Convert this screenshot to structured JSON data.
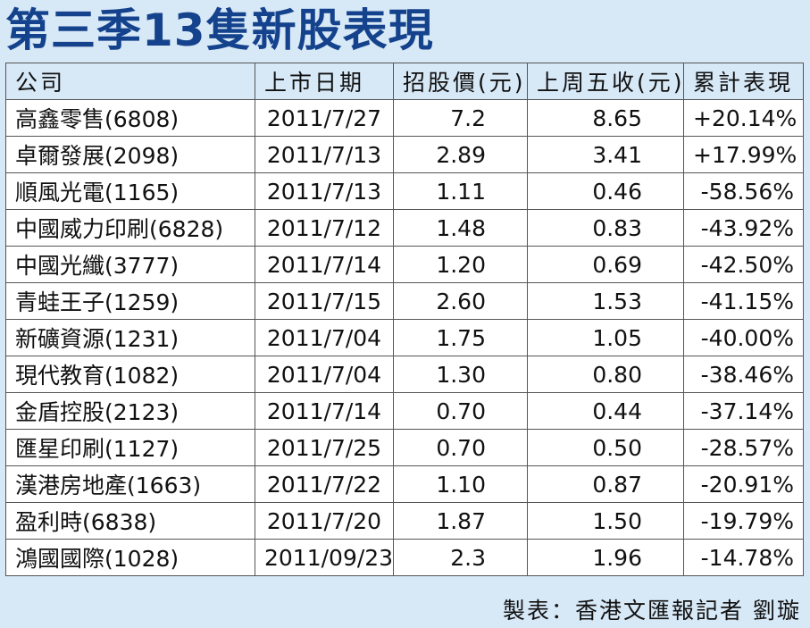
{
  "title": "第三季13隻新股表現",
  "table": {
    "header": [
      "公司",
      "上市日期",
      "招股價(元)",
      "上周五收(元)",
      "累計表現"
    ],
    "rows": [
      [
        "高鑫零售(6808)",
        "2011/7/27",
        "7.2",
        "8.65",
        "+20.14%"
      ],
      [
        "卓爾發展(2098)",
        "2011/7/13",
        "2.89",
        "3.41",
        "+17.99%"
      ],
      [
        "順風光電(1165)",
        "2011/7/13",
        "1.11",
        "0.46",
        "-58.56%"
      ],
      [
        "中國威力印刷(6828)",
        "2011/7/12",
        "1.48",
        "0.83",
        "-43.92%"
      ],
      [
        "中國光纖(3777)",
        "2011/7/14",
        "1.20",
        "0.69",
        "-42.50%"
      ],
      [
        "青蛙王子(1259)",
        "2011/7/15",
        "2.60",
        "1.53",
        "-41.15%"
      ],
      [
        "新礦資源(1231)",
        "2011/7/04",
        "1.75",
        "1.05",
        "-40.00%"
      ],
      [
        "現代教育(1082)",
        "2011/7/04",
        "1.30",
        "0.80",
        "-38.46%"
      ],
      [
        "金盾控股(2123)",
        "2011/7/14",
        "0.70",
        "0.44",
        "-37.14%"
      ],
      [
        "匯星印刷(1127)",
        "2011/7/25",
        "0.70",
        "0.50",
        "-28.57%"
      ],
      [
        "漢港房地產(1663)",
        "2011/7/22",
        "1.10",
        "0.87",
        "-20.91%"
      ],
      [
        "盈利時(6838)",
        "2011/7/20",
        "1.87",
        "1.50",
        "-19.79%"
      ],
      [
        "鴻國國際(1028)",
        "2011/09/23",
        "2.3",
        "1.96",
        "-14.78%"
      ]
    ]
  },
  "footer": "製表：香港文匯報記者 劉璇"
}
